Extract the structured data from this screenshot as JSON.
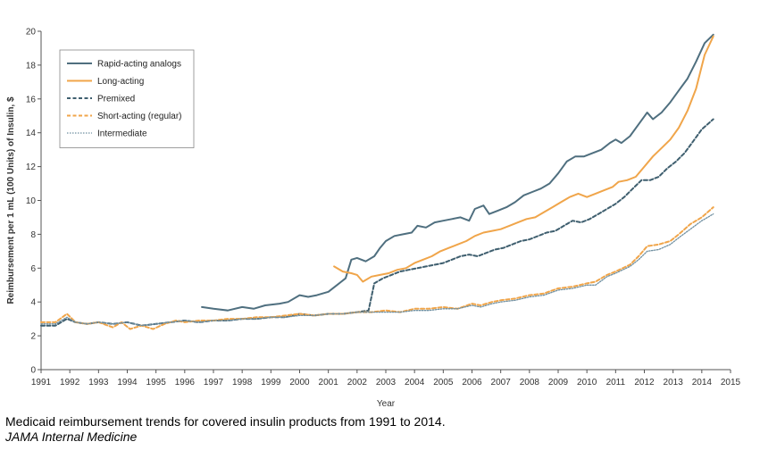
{
  "chart_data": {
    "type": "line",
    "xlabel": "Year",
    "ylabel": "Reimbursement per 1 mL (100 Units) of Insulin, $",
    "xlim": [
      1991,
      2015
    ],
    "ylim": [
      0,
      20
    ],
    "x_ticks": [
      1991,
      1992,
      1993,
      1994,
      1995,
      1996,
      1997,
      1998,
      1999,
      2000,
      2001,
      2002,
      2003,
      2004,
      2005,
      2006,
      2007,
      2008,
      2009,
      2010,
      2011,
      2012,
      2013,
      2014,
      2015
    ],
    "y_ticks": [
      0,
      2,
      4,
      6,
      8,
      10,
      12,
      14,
      16,
      18,
      20
    ],
    "grid": false,
    "legend_position": "top-left",
    "series": [
      {
        "name": "Rapid-acting analogs",
        "color": "#4f6f7f",
        "style": "solid",
        "points": [
          [
            1996.6,
            3.7
          ],
          [
            1997.0,
            3.6
          ],
          [
            1997.5,
            3.5
          ],
          [
            1998.0,
            3.7
          ],
          [
            1998.4,
            3.6
          ],
          [
            1998.8,
            3.8
          ],
          [
            1999.3,
            3.9
          ],
          [
            1999.6,
            4.0
          ],
          [
            2000.0,
            4.4
          ],
          [
            2000.3,
            4.3
          ],
          [
            2000.6,
            4.4
          ],
          [
            2001.0,
            4.6
          ],
          [
            2001.3,
            5.0
          ],
          [
            2001.6,
            5.4
          ],
          [
            2001.8,
            6.5
          ],
          [
            2002.0,
            6.6
          ],
          [
            2002.3,
            6.4
          ],
          [
            2002.6,
            6.7
          ],
          [
            2002.8,
            7.2
          ],
          [
            2003.0,
            7.6
          ],
          [
            2003.3,
            7.9
          ],
          [
            2003.6,
            8.0
          ],
          [
            2003.9,
            8.1
          ],
          [
            2004.1,
            8.5
          ],
          [
            2004.4,
            8.4
          ],
          [
            2004.7,
            8.7
          ],
          [
            2005.0,
            8.8
          ],
          [
            2005.3,
            8.9
          ],
          [
            2005.6,
            9.0
          ],
          [
            2005.9,
            8.8
          ],
          [
            2006.1,
            9.5
          ],
          [
            2006.4,
            9.7
          ],
          [
            2006.6,
            9.2
          ],
          [
            2006.9,
            9.4
          ],
          [
            2007.2,
            9.6
          ],
          [
            2007.5,
            9.9
          ],
          [
            2007.8,
            10.3
          ],
          [
            2008.1,
            10.5
          ],
          [
            2008.4,
            10.7
          ],
          [
            2008.7,
            11.0
          ],
          [
            2009.0,
            11.6
          ],
          [
            2009.3,
            12.3
          ],
          [
            2009.6,
            12.6
          ],
          [
            2009.9,
            12.6
          ],
          [
            2010.2,
            12.8
          ],
          [
            2010.5,
            13.0
          ],
          [
            2010.8,
            13.4
          ],
          [
            2011.0,
            13.6
          ],
          [
            2011.2,
            13.4
          ],
          [
            2011.5,
            13.8
          ],
          [
            2011.8,
            14.5
          ],
          [
            2012.1,
            15.2
          ],
          [
            2012.3,
            14.8
          ],
          [
            2012.6,
            15.2
          ],
          [
            2012.9,
            15.8
          ],
          [
            2013.2,
            16.5
          ],
          [
            2013.5,
            17.2
          ],
          [
            2013.8,
            18.2
          ],
          [
            2014.1,
            19.3
          ],
          [
            2014.4,
            19.8
          ]
        ]
      },
      {
        "name": "Long-acting",
        "color": "#f0a54a",
        "style": "solid",
        "points": [
          [
            2001.2,
            6.1
          ],
          [
            2001.5,
            5.8
          ],
          [
            2001.8,
            5.7
          ],
          [
            2002.0,
            5.6
          ],
          [
            2002.2,
            5.2
          ],
          [
            2002.5,
            5.5
          ],
          [
            2002.8,
            5.6
          ],
          [
            2003.1,
            5.7
          ],
          [
            2003.4,
            5.9
          ],
          [
            2003.7,
            6.0
          ],
          [
            2004.0,
            6.3
          ],
          [
            2004.3,
            6.5
          ],
          [
            2004.6,
            6.7
          ],
          [
            2004.9,
            7.0
          ],
          [
            2005.2,
            7.2
          ],
          [
            2005.5,
            7.4
          ],
          [
            2005.8,
            7.6
          ],
          [
            2006.1,
            7.9
          ],
          [
            2006.4,
            8.1
          ],
          [
            2006.7,
            8.2
          ],
          [
            2007.0,
            8.3
          ],
          [
            2007.3,
            8.5
          ],
          [
            2007.6,
            8.7
          ],
          [
            2007.9,
            8.9
          ],
          [
            2008.2,
            9.0
          ],
          [
            2008.5,
            9.3
          ],
          [
            2008.8,
            9.6
          ],
          [
            2009.1,
            9.9
          ],
          [
            2009.4,
            10.2
          ],
          [
            2009.7,
            10.4
          ],
          [
            2010.0,
            10.2
          ],
          [
            2010.3,
            10.4
          ],
          [
            2010.6,
            10.6
          ],
          [
            2010.9,
            10.8
          ],
          [
            2011.1,
            11.1
          ],
          [
            2011.4,
            11.2
          ],
          [
            2011.7,
            11.4
          ],
          [
            2012.0,
            12.0
          ],
          [
            2012.3,
            12.6
          ],
          [
            2012.6,
            13.1
          ],
          [
            2012.9,
            13.6
          ],
          [
            2013.2,
            14.3
          ],
          [
            2013.5,
            15.3
          ],
          [
            2013.8,
            16.6
          ],
          [
            2014.1,
            18.6
          ],
          [
            2014.4,
            19.7
          ]
        ]
      },
      {
        "name": "Premixed",
        "color": "#3f5f6f",
        "style": "dashed",
        "points": [
          [
            1991.0,
            2.6
          ],
          [
            1991.5,
            2.6
          ],
          [
            1991.9,
            3.0
          ],
          [
            1992.2,
            2.8
          ],
          [
            1992.6,
            2.7
          ],
          [
            1993.0,
            2.8
          ],
          [
            1993.5,
            2.7
          ],
          [
            1994.0,
            2.8
          ],
          [
            1994.5,
            2.6
          ],
          [
            1995.0,
            2.7
          ],
          [
            1995.5,
            2.8
          ],
          [
            1996.0,
            2.9
          ],
          [
            1996.5,
            2.8
          ],
          [
            1997.0,
            2.9
          ],
          [
            1997.5,
            2.9
          ],
          [
            1998.0,
            3.0
          ],
          [
            1998.5,
            3.0
          ],
          [
            1999.0,
            3.1
          ],
          [
            1999.5,
            3.1
          ],
          [
            2000.0,
            3.3
          ],
          [
            2000.5,
            3.2
          ],
          [
            2001.0,
            3.3
          ],
          [
            2001.5,
            3.3
          ],
          [
            2002.0,
            3.4
          ],
          [
            2002.4,
            3.5
          ],
          [
            2002.6,
            5.1
          ],
          [
            2002.9,
            5.4
          ],
          [
            2003.2,
            5.6
          ],
          [
            2003.5,
            5.8
          ],
          [
            2003.8,
            5.9
          ],
          [
            2004.1,
            6.0
          ],
          [
            2004.4,
            6.1
          ],
          [
            2004.7,
            6.2
          ],
          [
            2005.0,
            6.3
          ],
          [
            2005.3,
            6.5
          ],
          [
            2005.6,
            6.7
          ],
          [
            2005.9,
            6.8
          ],
          [
            2006.2,
            6.7
          ],
          [
            2006.5,
            6.9
          ],
          [
            2006.8,
            7.1
          ],
          [
            2007.1,
            7.2
          ],
          [
            2007.4,
            7.4
          ],
          [
            2007.7,
            7.6
          ],
          [
            2008.0,
            7.7
          ],
          [
            2008.3,
            7.9
          ],
          [
            2008.6,
            8.1
          ],
          [
            2008.9,
            8.2
          ],
          [
            2009.2,
            8.5
          ],
          [
            2009.5,
            8.8
          ],
          [
            2009.8,
            8.7
          ],
          [
            2010.1,
            8.9
          ],
          [
            2010.4,
            9.2
          ],
          [
            2010.7,
            9.5
          ],
          [
            2011.0,
            9.8
          ],
          [
            2011.3,
            10.2
          ],
          [
            2011.6,
            10.7
          ],
          [
            2011.9,
            11.2
          ],
          [
            2012.2,
            11.2
          ],
          [
            2012.5,
            11.4
          ],
          [
            2012.8,
            11.9
          ],
          [
            2013.1,
            12.3
          ],
          [
            2013.4,
            12.8
          ],
          [
            2013.7,
            13.5
          ],
          [
            2014.0,
            14.2
          ],
          [
            2014.4,
            14.8
          ]
        ]
      },
      {
        "name": "Short-acting (regular)",
        "color": "#f0a54a",
        "style": "dashed",
        "points": [
          [
            1991.0,
            2.8
          ],
          [
            1991.5,
            2.8
          ],
          [
            1991.9,
            3.3
          ],
          [
            1992.2,
            2.8
          ],
          [
            1992.6,
            2.7
          ],
          [
            1993.0,
            2.8
          ],
          [
            1993.5,
            2.5
          ],
          [
            1993.8,
            2.8
          ],
          [
            1994.1,
            2.4
          ],
          [
            1994.5,
            2.6
          ],
          [
            1994.9,
            2.4
          ],
          [
            1995.3,
            2.7
          ],
          [
            1995.7,
            2.9
          ],
          [
            1996.0,
            2.8
          ],
          [
            1996.5,
            2.9
          ],
          [
            1997.0,
            2.9
          ],
          [
            1997.5,
            3.0
          ],
          [
            1998.0,
            3.0
          ],
          [
            1998.5,
            3.1
          ],
          [
            1999.0,
            3.1
          ],
          [
            1999.5,
            3.2
          ],
          [
            2000.0,
            3.3
          ],
          [
            2000.5,
            3.2
          ],
          [
            2001.0,
            3.3
          ],
          [
            2001.5,
            3.3
          ],
          [
            2002.0,
            3.4
          ],
          [
            2002.5,
            3.4
          ],
          [
            2003.0,
            3.5
          ],
          [
            2003.5,
            3.4
          ],
          [
            2004.0,
            3.6
          ],
          [
            2004.5,
            3.6
          ],
          [
            2005.0,
            3.7
          ],
          [
            2005.5,
            3.6
          ],
          [
            2006.0,
            3.9
          ],
          [
            2006.3,
            3.8
          ],
          [
            2006.7,
            4.0
          ],
          [
            2007.0,
            4.1
          ],
          [
            2007.5,
            4.2
          ],
          [
            2008.0,
            4.4
          ],
          [
            2008.5,
            4.5
          ],
          [
            2009.0,
            4.8
          ],
          [
            2009.5,
            4.9
          ],
          [
            2010.0,
            5.1
          ],
          [
            2010.3,
            5.2
          ],
          [
            2010.7,
            5.6
          ],
          [
            2011.0,
            5.8
          ],
          [
            2011.5,
            6.2
          ],
          [
            2011.8,
            6.7
          ],
          [
            2012.1,
            7.3
          ],
          [
            2012.5,
            7.4
          ],
          [
            2012.9,
            7.6
          ],
          [
            2013.2,
            8.0
          ],
          [
            2013.6,
            8.6
          ],
          [
            2014.0,
            9.0
          ],
          [
            2014.4,
            9.6
          ]
        ]
      },
      {
        "name": "Intermediate",
        "color": "#6f8fa0",
        "style": "dotted",
        "points": [
          [
            1991.0,
            2.7
          ],
          [
            1991.5,
            2.7
          ],
          [
            1991.9,
            3.1
          ],
          [
            1992.2,
            2.8
          ],
          [
            1992.6,
            2.7
          ],
          [
            1993.0,
            2.8
          ],
          [
            1993.5,
            2.7
          ],
          [
            1994.0,
            2.8
          ],
          [
            1994.5,
            2.6
          ],
          [
            1995.0,
            2.7
          ],
          [
            1995.5,
            2.8
          ],
          [
            1996.0,
            2.9
          ],
          [
            1996.5,
            2.8
          ],
          [
            1997.0,
            2.9
          ],
          [
            1997.5,
            2.9
          ],
          [
            1998.0,
            3.0
          ],
          [
            1998.5,
            3.0
          ],
          [
            1999.0,
            3.1
          ],
          [
            1999.5,
            3.1
          ],
          [
            2000.0,
            3.2
          ],
          [
            2000.5,
            3.2
          ],
          [
            2001.0,
            3.3
          ],
          [
            2001.5,
            3.3
          ],
          [
            2002.0,
            3.4
          ],
          [
            2002.5,
            3.4
          ],
          [
            2003.0,
            3.4
          ],
          [
            2003.5,
            3.4
          ],
          [
            2004.0,
            3.5
          ],
          [
            2004.5,
            3.5
          ],
          [
            2005.0,
            3.6
          ],
          [
            2005.5,
            3.6
          ],
          [
            2006.0,
            3.8
          ],
          [
            2006.3,
            3.7
          ],
          [
            2006.7,
            3.9
          ],
          [
            2007.0,
            4.0
          ],
          [
            2007.5,
            4.1
          ],
          [
            2008.0,
            4.3
          ],
          [
            2008.5,
            4.4
          ],
          [
            2009.0,
            4.7
          ],
          [
            2009.5,
            4.8
          ],
          [
            2010.0,
            5.0
          ],
          [
            2010.3,
            5.0
          ],
          [
            2010.7,
            5.5
          ],
          [
            2011.0,
            5.7
          ],
          [
            2011.5,
            6.1
          ],
          [
            2011.8,
            6.5
          ],
          [
            2012.1,
            7.0
          ],
          [
            2012.5,
            7.1
          ],
          [
            2012.9,
            7.4
          ],
          [
            2013.2,
            7.8
          ],
          [
            2013.6,
            8.3
          ],
          [
            2014.0,
            8.8
          ],
          [
            2014.4,
            9.2
          ]
        ]
      }
    ]
  },
  "caption": "Medicaid reimbursement trends for covered insulin products from 1991 to 2014.",
  "source": "JAMA Internal Medicine"
}
